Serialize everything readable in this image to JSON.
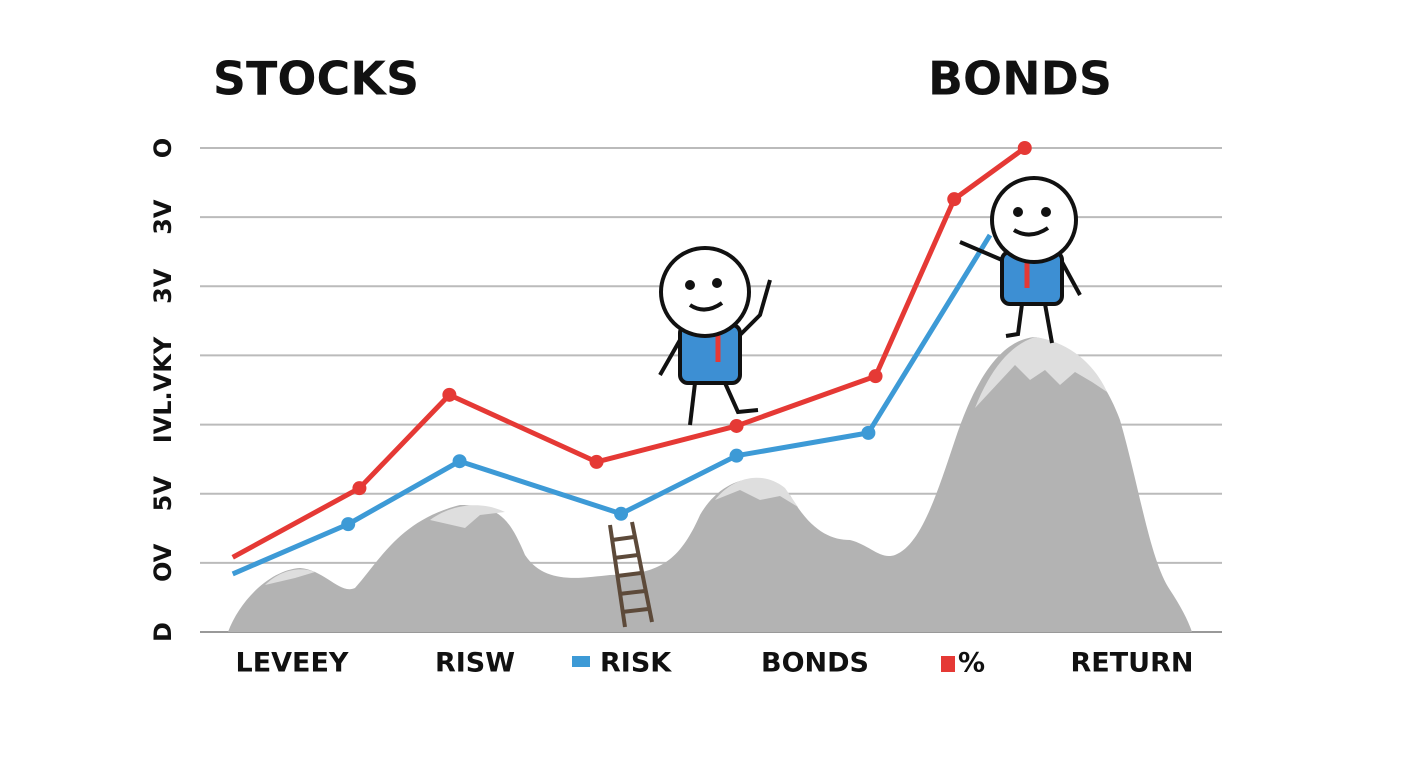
{
  "chart_data": {
    "type": "line",
    "annotations": [
      "STOCKS",
      "BONDS"
    ],
    "bottom_labels": [
      "LEVEEY",
      "RISW",
      "BONDS",
      "RETURN"
    ],
    "xlim": [
      0,
      100
    ],
    "ylim": [
      0,
      7
    ],
    "yticks": [
      {
        "value": 0,
        "label": "D"
      },
      {
        "value": 1,
        "label": "OV"
      },
      {
        "value": 2,
        "label": "5V"
      },
      {
        "value": 3,
        "label": "IVL.VKY"
      },
      {
        "value": 4,
        "label": null
      },
      {
        "value": 5,
        "label": "3V"
      },
      {
        "value": 6,
        "label": "3V"
      },
      {
        "value": 7,
        "label": "O"
      }
    ],
    "grid": true,
    "series": [
      {
        "name": "%",
        "color": "#e53935",
        "x": [
          3.2,
          15.6,
          24.4,
          38.8,
          52.5,
          66.1,
          73.8,
          80.7
        ],
        "values": [
          1.08,
          2.08,
          3.43,
          2.46,
          2.98,
          3.7,
          6.26,
          7.0
        ]
      },
      {
        "name": "RISK",
        "color": "#3d9ad6",
        "x": [
          3.2,
          14.5,
          25.4,
          41.2,
          52.5,
          65.4,
          77.3
        ],
        "values": [
          0.84,
          1.56,
          2.47,
          1.71,
          2.55,
          2.88,
          5.74
        ]
      }
    ]
  }
}
